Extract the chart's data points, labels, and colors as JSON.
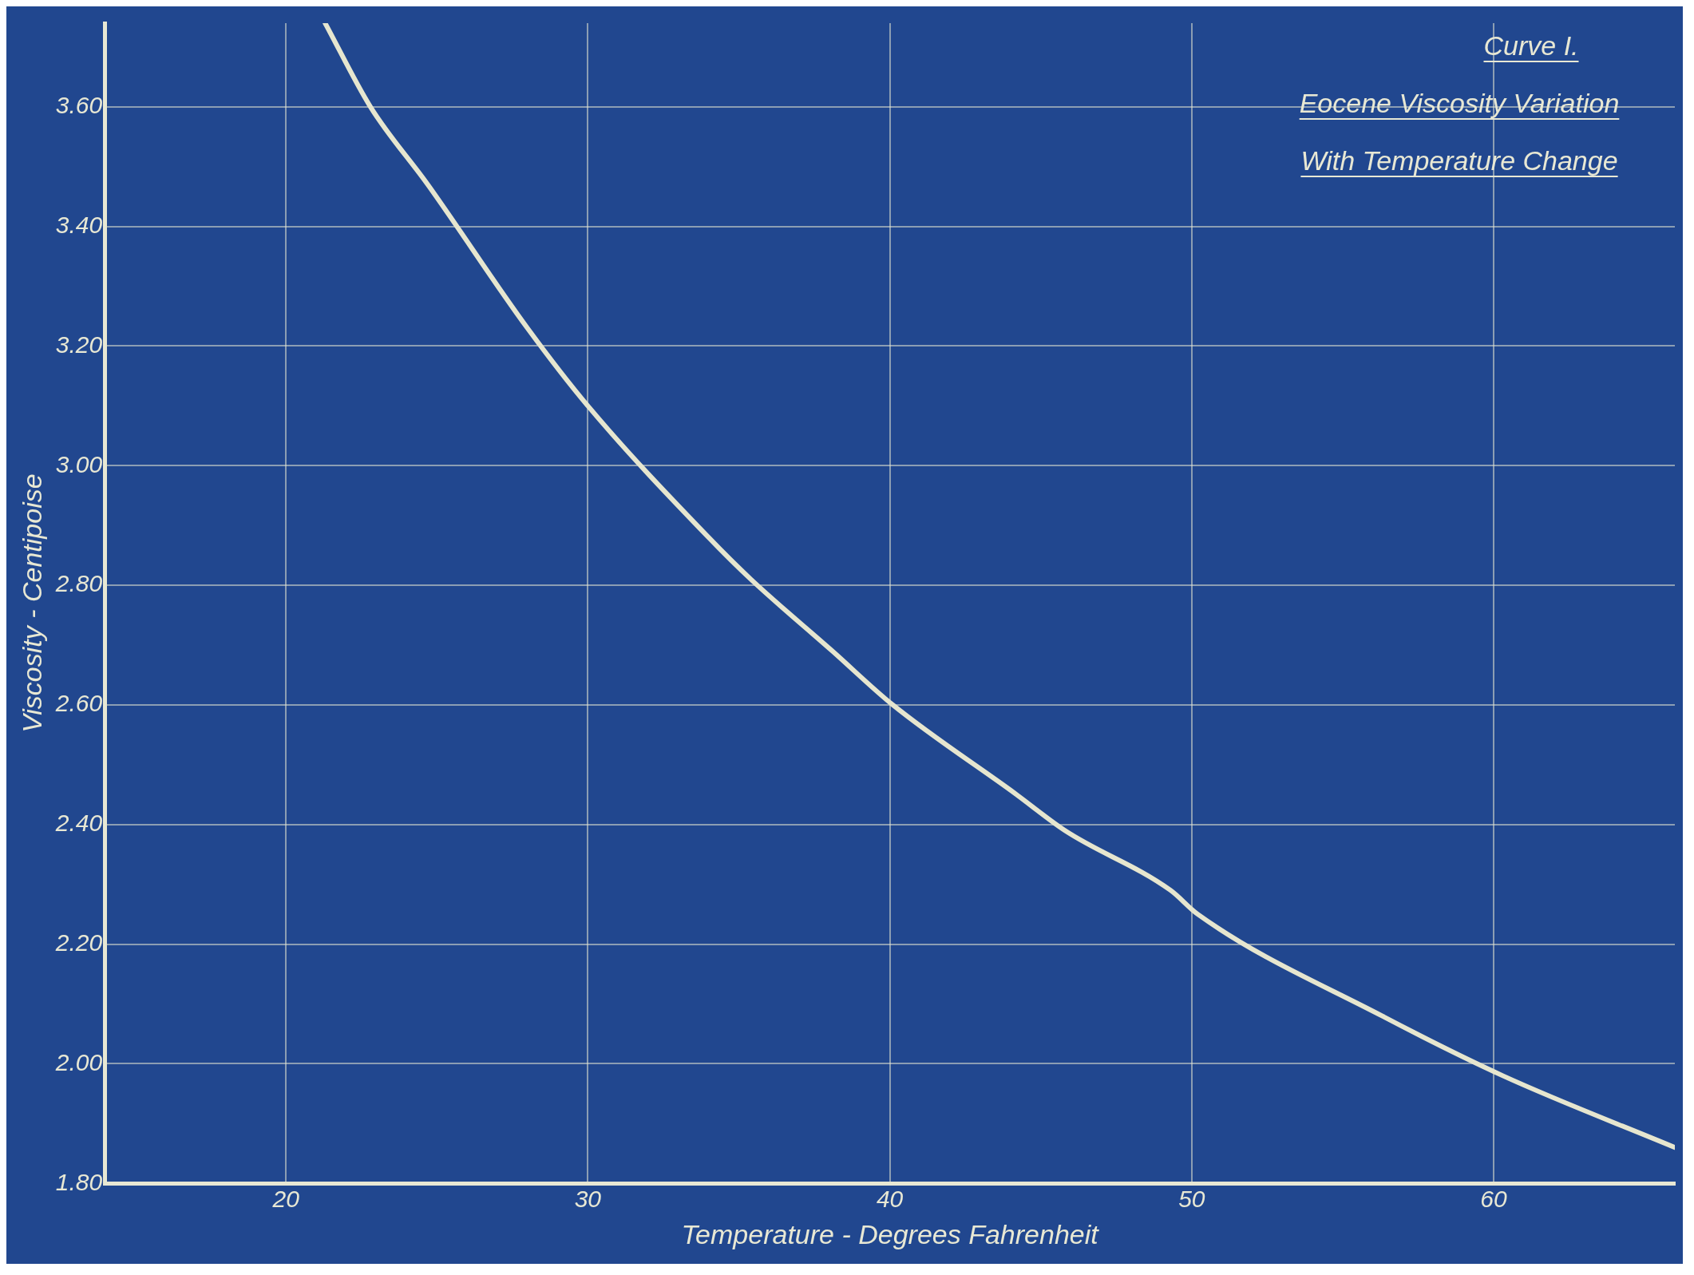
{
  "chart_data": {
    "type": "line",
    "title": "Curve I.",
    "subtitle": "Eocene Viscosity Variation With Temperature Change",
    "xlabel": "Temperature - Degrees Fahrenheit",
    "ylabel": "Viscosity - Centipoise",
    "series": [
      {
        "color": "#e6e6cf",
        "x": [
          21.3,
          22.8,
          24.7,
          28.0,
          30.0,
          34.0,
          35.4,
          38.1,
          40.1,
          44.2,
          45.8,
          49.3,
          50.2,
          56.3,
          60.3,
          66.0
        ],
        "values": [
          3.74,
          3.6,
          3.47,
          3.23,
          3.1,
          2.88,
          2.81,
          2.69,
          2.6,
          2.45,
          2.39,
          2.29,
          2.25,
          2.08,
          1.98,
          1.86
        ]
      }
    ],
    "xlim": [
      14.0,
      66.0
    ],
    "xticks": [
      20,
      30,
      40,
      50,
      60
    ],
    "ylim": [
      1.8,
      3.74
    ],
    "yticks": [
      {
        "value": 1.8,
        "label": "1.80"
      },
      {
        "value": 2.0,
        "label": "2.00"
      },
      {
        "value": 2.2,
        "label": "2.20"
      },
      {
        "value": 2.4,
        "label": "2.40"
      },
      {
        "value": 2.6,
        "label": "2.60"
      },
      {
        "value": 2.8,
        "label": "2.80"
      },
      {
        "value": 3.0,
        "label": "3.00"
      },
      {
        "value": 3.2,
        "label": "3.20"
      },
      {
        "value": 3.4,
        "label": "3.40"
      },
      {
        "value": 3.6,
        "label": "3.60"
      }
    ],
    "grid": true,
    "legend": false,
    "marker": "none",
    "line_style": "solid"
  }
}
